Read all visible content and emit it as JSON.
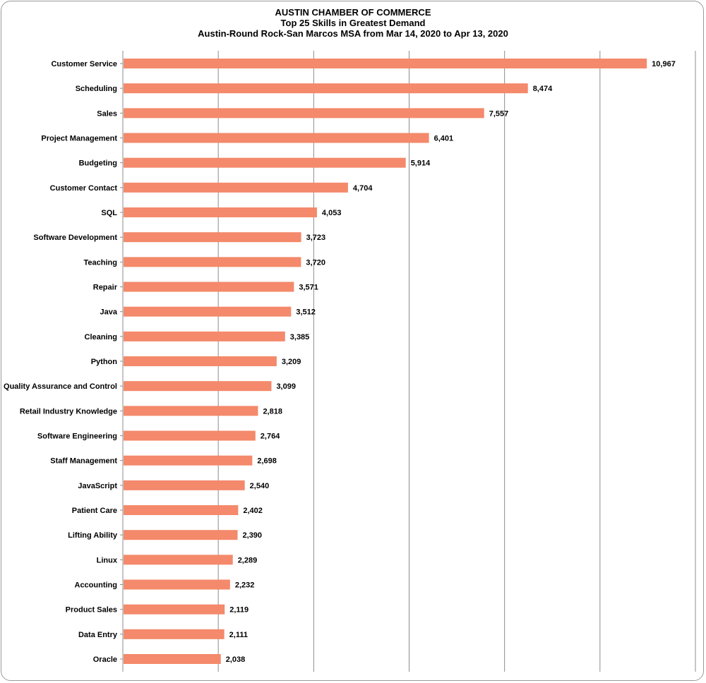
{
  "chart_data": {
    "type": "bar",
    "orientation": "horizontal",
    "title": "AUSTIN CHAMBER  OF COMMERCE",
    "subtitle": "Top 25  Skills in Greatest Demand",
    "subtitle2": "Austin-Round  Rock-San Marcos MSA from Mar 14, 2020 to Apr 13, 2020",
    "xlabel": "",
    "ylabel": "",
    "xlim": [
      0,
      12000
    ],
    "grid": true,
    "bar_color": "#f4896b",
    "categories": [
      "Customer Service",
      "Scheduling",
      "Sales",
      "Project Management",
      "Budgeting",
      "Customer Contact",
      "SQL",
      "Software Development",
      "Teaching",
      "Repair",
      "Java",
      "Cleaning",
      "Python",
      "Quality Assurance and Control",
      "Retail Industry Knowledge",
      "Software Engineering",
      "Staff Management",
      "JavaScript",
      "Patient Care",
      "Lifting Ability",
      "Linux",
      "Accounting",
      "Product Sales",
      "Data Entry",
      "Oracle"
    ],
    "values": [
      10967,
      8474,
      7557,
      6401,
      5914,
      4704,
      4053,
      3723,
      3720,
      3571,
      3512,
      3385,
      3209,
      3099,
      2818,
      2764,
      2698,
      2540,
      2402,
      2390,
      2289,
      2232,
      2119,
      2111,
      2038
    ],
    "value_labels": [
      "10,967",
      "8,474",
      "7,557",
      "6,401",
      "5,914",
      "4,704",
      "4,053",
      "3,723",
      "3,720",
      "3,571",
      "3,512",
      "3,385",
      "3,209",
      "3,099",
      "2,818",
      "2,764",
      "2,698",
      "2,540",
      "2,402",
      "2,390",
      "2,289",
      "2,232",
      "2,119",
      "2,111",
      "2,038"
    ]
  }
}
